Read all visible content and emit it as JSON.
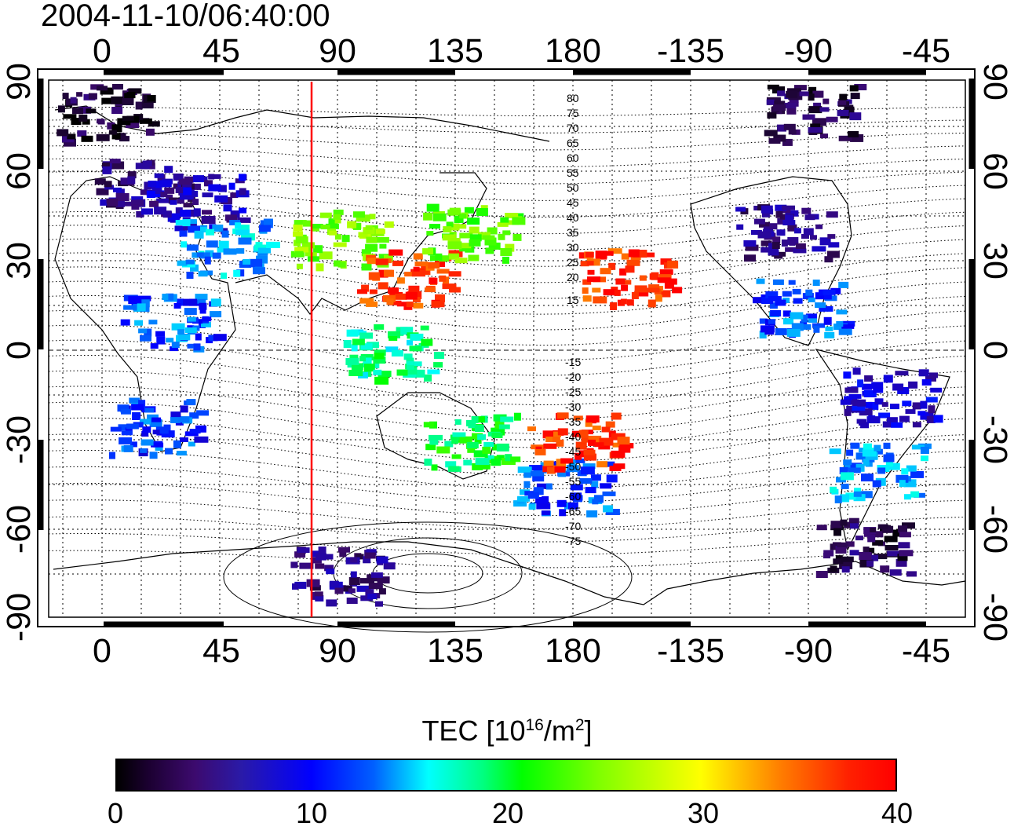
{
  "timestamp": "2004-11-10/06:40:00",
  "map": {
    "x_ticks": [
      "0",
      "45",
      "90",
      "135",
      "180",
      "-135",
      "-90",
      "-45"
    ],
    "y_ticks": [
      "90",
      "60",
      "30",
      "0",
      "-30",
      "-60",
      "-90"
    ],
    "contour_labels_north": [
      "80",
      "75",
      "70",
      "65",
      "60",
      "55",
      "50",
      "45",
      "40",
      "35",
      "30",
      "25",
      "20",
      "15"
    ],
    "contour_labels_south": [
      "-15",
      "-20",
      "-25",
      "-30",
      "-35",
      "-40",
      "-45",
      "-50",
      "-55",
      "-60",
      "-65",
      "-70",
      "-75"
    ],
    "meridian_marker_color": "#ff0000",
    "tec_blobs": [
      {
        "lon": 15,
        "lat": 55,
        "tec": 5
      },
      {
        "lon": 35,
        "lat": 50,
        "tec": 7
      },
      {
        "lon": 45,
        "lat": 35,
        "tec": 14
      },
      {
        "lon": 25,
        "lat": 10,
        "tec": 12
      },
      {
        "lon": 20,
        "lat": -25,
        "tec": 11
      },
      {
        "lon": 90,
        "lat": 38,
        "tec": 25
      },
      {
        "lon": 115,
        "lat": 25,
        "tec": 38
      },
      {
        "lon": 140,
        "lat": 40,
        "tec": 24
      },
      {
        "lon": 110,
        "lat": 0,
        "tec": 18
      },
      {
        "lon": 140,
        "lat": -30,
        "tec": 20
      },
      {
        "lon": 175,
        "lat": -45,
        "tec": 12
      },
      {
        "lon": 180,
        "lat": -30,
        "tec": 38
      },
      {
        "lon": -160,
        "lat": 25,
        "tec": 38
      },
      {
        "lon": -100,
        "lat": 40,
        "tec": 5
      },
      {
        "lon": -95,
        "lat": 15,
        "tec": 12
      },
      {
        "lon": -60,
        "lat": -15,
        "tec": 8
      },
      {
        "lon": -65,
        "lat": -40,
        "tec": 14
      },
      {
        "lon": -70,
        "lat": -65,
        "tec": 3
      },
      {
        "lon": -90,
        "lat": 80,
        "tec": 3
      },
      {
        "lon": 0,
        "lat": 80,
        "tec": 2
      },
      {
        "lon": 90,
        "lat": -75,
        "tec": 5
      }
    ]
  },
  "colorbar": {
    "label_main": "TEC  [10",
    "label_exp": "16",
    "label_unit": "/m",
    "label_exp2": "2",
    "label_end": "]",
    "ticks": [
      "0",
      "10",
      "20",
      "30",
      "40"
    ],
    "min": 0,
    "max": 40
  }
}
